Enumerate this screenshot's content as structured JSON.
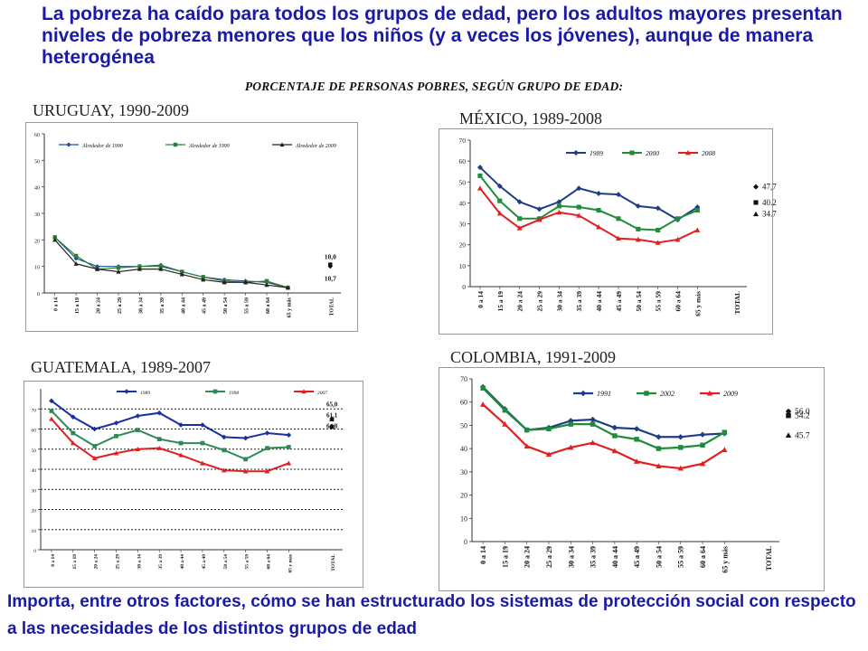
{
  "slide": {
    "headline": "La pobreza ha caído para todos los grupos de edad, pero los adultos mayores presentan niveles de pobreza menores que los niños (y a veces los jóvenes), aunque de manera heterogénea",
    "subtitle": "PORCENTAJE DE PERSONAS POBRES, SEGÚN GRUPO DE EDAD:",
    "footer": "Importa, entre otros factores, cómo se han estructurado los sistemas de protección social con respecto a las necesidades de los distintos grupos de edad"
  },
  "chart_data": [
    {
      "id": "uruguay",
      "title": "URUGUAY, 1990-2009",
      "type": "line",
      "categories": [
        "0 a 14",
        "15 a 19",
        "20 a 24",
        "25 a 29",
        "30 a 34",
        "35 a 39",
        "40 a 44",
        "45 a 49",
        "50 a 54",
        "55 a 59",
        "60 a 64",
        "65 y más"
      ],
      "total_label": "TOTAL",
      "ylim": [
        0,
        60
      ],
      "yticks": [
        0,
        10,
        20,
        30,
        40,
        50,
        60
      ],
      "grid": false,
      "legend": "top",
      "series": [
        {
          "name": "Alrededor de 1990",
          "color": "#1f4e9c",
          "marker": "diamond",
          "values": [
            21,
            13,
            10,
            10,
            10,
            10.5,
            8,
            6,
            5,
            4.5,
            4,
            2
          ],
          "total": 10.0
        },
        {
          "name": "Alrededor de 1999",
          "color": "#2e7d32",
          "marker": "square",
          "values": [
            21,
            14,
            9,
            9.5,
            10,
            10,
            8,
            6,
            4.5,
            4,
            4.5,
            2
          ],
          "total": 10.7
        },
        {
          "name": "Alrededor de 2009",
          "color": "#222222",
          "marker": "triangle",
          "values": [
            20,
            11,
            9,
            8,
            9,
            9,
            7,
            5,
            4,
            4,
            3,
            2
          ],
          "total": 10.7
        }
      ],
      "total_labels": [
        "10,0",
        "10,7"
      ]
    },
    {
      "id": "mexico",
      "title": "MÉXICO, 1989-2008",
      "type": "line",
      "categories": [
        "0 a 14",
        "15 a 19",
        "20 a 24",
        "25 a 29",
        "30 a 34",
        "35 a 39",
        "40 a 44",
        "45 a 49",
        "50 a 54",
        "55 a 59",
        "60 a 64",
        "65 y más"
      ],
      "total_label": "TOTAL",
      "ylim": [
        0,
        70
      ],
      "yticks": [
        0,
        10,
        20,
        30,
        40,
        50,
        60,
        70
      ],
      "grid": false,
      "legend": "top",
      "series": [
        {
          "name": "1989",
          "color": "#1f3c88",
          "marker": "diamond",
          "values": [
            57,
            48,
            40.5,
            37,
            40.5,
            47,
            44.5,
            44,
            38.5,
            37.5,
            32,
            38
          ],
          "total": 47.7
        },
        {
          "name": "2000",
          "color": "#1e8c3a",
          "marker": "square",
          "values": [
            53,
            41,
            32.5,
            32.5,
            38.5,
            38,
            36.5,
            32.5,
            27.5,
            27,
            32.5,
            36.5
          ],
          "total": 40.2
        },
        {
          "name": "2008",
          "color": "#e02020",
          "marker": "triangle",
          "values": [
            47,
            35,
            28,
            32,
            35.5,
            34,
            28.5,
            23,
            22.5,
            21,
            22.5,
            27
          ],
          "total": 34.7
        }
      ],
      "total_labels": [
        "47,7",
        "40.2",
        "34.7"
      ]
    },
    {
      "id": "guatemala",
      "title": "GUATEMALA, 1989-2007",
      "type": "line",
      "categories": [
        "0 a 14",
        "15 a 19",
        "20 a 24",
        "25 a 29",
        "30 a 34",
        "35 a 39",
        "40 a 44",
        "45 a 49",
        "50 a 54",
        "55 a 59",
        "60 a 64",
        "65 y más"
      ],
      "total_label": "TOTAL",
      "ylim": [
        0,
        80
      ],
      "yticks": [
        0,
        10,
        20,
        30,
        40,
        50,
        60,
        70
      ],
      "grid": true,
      "legend": "top",
      "series": [
        {
          "name": "1989",
          "color": "#1a2fa0",
          "marker": "diamond",
          "values": [
            74,
            66,
            60,
            63,
            66.5,
            68,
            62,
            62,
            56,
            55.5,
            58,
            57
          ],
          "total": 65.0
        },
        {
          "name": "1998",
          "color": "#2e8b57",
          "marker": "square",
          "values": [
            69,
            58,
            51.5,
            56.5,
            59.5,
            55,
            53,
            53,
            49.5,
            45,
            50.5,
            51
          ],
          "total": 61.1
        },
        {
          "name": "2007",
          "color": "#e02020",
          "marker": "triangle",
          "values": [
            65,
            53,
            45.5,
            48,
            50,
            50.5,
            47,
            43,
            39.5,
            39,
            39,
            43
          ],
          "total": 64.8
        }
      ],
      "total_labels": [
        "65,0",
        "61,1",
        "64,8"
      ]
    },
    {
      "id": "colombia",
      "title": "COLOMBIA, 1991-2009",
      "type": "line",
      "categories": [
        "0 a 14",
        "15 a 19",
        "20 a 24",
        "25 a 29",
        "30 a 34",
        "35 a 39",
        "40 a 44",
        "45 a 49",
        "50 a 54",
        "55 a 59",
        "60 a 64",
        "65 y más"
      ],
      "total_label": "TOTAL",
      "ylim": [
        0,
        70
      ],
      "yticks": [
        0,
        10,
        20,
        30,
        40,
        50,
        60,
        70
      ],
      "grid": false,
      "legend": "top",
      "series": [
        {
          "name": "1991",
          "color": "#1f3c88",
          "marker": "diamond",
          "values": [
            66.5,
            57,
            48,
            49,
            52,
            52.5,
            49,
            48.5,
            45,
            45,
            46,
            46.5
          ],
          "total": 56.0
        },
        {
          "name": "2002",
          "color": "#1e8c3a",
          "marker": "square",
          "values": [
            66,
            56.5,
            48,
            48.5,
            50.5,
            50.5,
            45.5,
            44,
            40,
            40.5,
            41.5,
            47
          ],
          "total": 54.2
        },
        {
          "name": "2009",
          "color": "#e02020",
          "marker": "triangle",
          "values": [
            59,
            50.5,
            41,
            37.5,
            40.5,
            42.5,
            39,
            34.5,
            32.5,
            31.5,
            33.5,
            39.5
          ],
          "total": 45.7
        }
      ],
      "total_labels": [
        "56.0",
        "54.2",
        "45.7"
      ]
    }
  ]
}
